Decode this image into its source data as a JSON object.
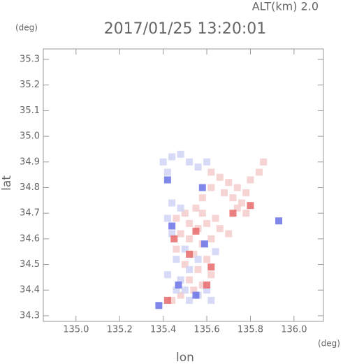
{
  "chart_data": {
    "type": "scatter",
    "title": "2017/01/25 13:20:01",
    "subtitle": "ALT(km) 2.0",
    "x_label": "lon",
    "y_label": "lat",
    "x_unit": "(deg)",
    "y_unit": "(deg)",
    "xlim": [
      134.85,
      136.135
    ],
    "ylim": [
      34.278,
      35.341
    ],
    "xticks": [
      {
        "value": 135,
        "label": "135.0"
      },
      135.2,
      135.4,
      135.6,
      135.8,
      {
        "value": 136,
        "label": "136.0"
      }
    ],
    "yticks": [
      34.3,
      34.4,
      34.5,
      34.6,
      34.7,
      34.8,
      34.9,
      {
        "value": 35,
        "label": "35.0"
      },
      35.1,
      35.2,
      35.3
    ],
    "series": [
      {
        "color": "#f6cccc",
        "x": [
          135.62,
          135.66,
          135.7,
          135.74,
          135.78,
          135.8,
          135.84,
          135.86,
          135.72,
          135.68,
          135.76,
          135.78,
          135.74,
          135.62,
          135.58,
          135.55,
          135.5,
          135.46,
          135.52,
          135.56,
          135.6,
          135.64,
          135.66,
          135.48,
          135.52,
          135.58,
          135.62,
          135.46,
          135.54,
          135.6,
          135.5,
          135.56,
          135.62,
          135.52,
          135.58,
          135.54,
          135.48,
          135.44,
          135.7,
          135.58
        ],
        "values": [
          34.86,
          34.84,
          34.82,
          34.8,
          34.78,
          34.83,
          34.86,
          34.9,
          34.76,
          34.78,
          34.74,
          34.7,
          34.72,
          34.8,
          34.76,
          34.72,
          34.7,
          34.68,
          34.66,
          34.64,
          34.66,
          34.68,
          34.64,
          34.62,
          34.6,
          34.58,
          34.6,
          34.56,
          34.54,
          34.52,
          34.5,
          34.48,
          34.46,
          34.44,
          34.42,
          34.4,
          34.38,
          34.36,
          34.62,
          34.7
        ]
      },
      {
        "color": "#d0d4f6",
        "x": [
          135.4,
          135.44,
          135.48,
          135.52,
          135.56,
          135.42,
          135.6,
          135.44,
          135.48,
          135.42,
          135.44,
          135.5,
          135.46,
          135.52,
          135.48,
          135.5,
          135.56,
          135.6,
          135.62,
          135.52,
          135.46,
          135.42,
          135.56,
          135.64
        ],
        "values": [
          34.9,
          34.92,
          34.93,
          34.9,
          34.88,
          34.86,
          34.9,
          34.74,
          34.72,
          34.68,
          34.62,
          34.56,
          34.52,
          34.48,
          34.44,
          34.4,
          34.38,
          34.4,
          34.36,
          34.36,
          34.4,
          34.46,
          34.52,
          34.55
        ]
      },
      {
        "color": "#e86a6a",
        "x": [
          135.45,
          135.62,
          135.6,
          135.52,
          135.72,
          135.42,
          135.55,
          135.8
        ],
        "values": [
          34.6,
          34.49,
          34.42,
          34.54,
          34.7,
          34.36,
          34.63,
          34.73
        ]
      },
      {
        "color": "#6a72e8",
        "x": [
          135.44,
          135.47,
          135.55,
          135.42,
          135.38,
          135.93,
          135.59,
          135.58
        ],
        "values": [
          34.65,
          34.42,
          34.38,
          34.83,
          34.34,
          34.67,
          34.58,
          34.8
        ]
      }
    ]
  }
}
